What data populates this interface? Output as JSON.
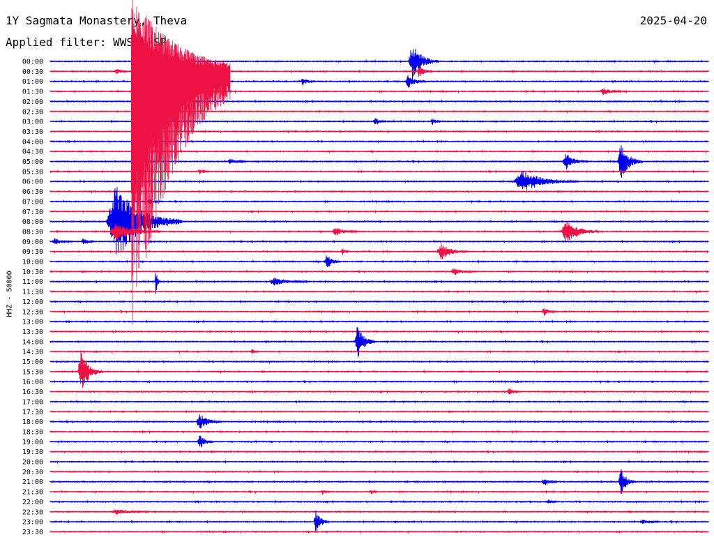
{
  "header": {
    "station": "1Y Sagmata Monastery, Theva",
    "date": "2025-04-20",
    "filter": "Applied filter: WWSSN-SP"
  },
  "colors": {
    "even_trace": "#0000ee",
    "odd_trace": "#ee1144"
  },
  "chart_data": {
    "type": "helicorder",
    "title": "1Y Sagmata Monastery, Theva",
    "date": "2025-04-20",
    "ylabel": "HHZ - 50000",
    "row_minutes": 30,
    "row_labels": [
      "00:00",
      "00:30",
      "01:00",
      "01:30",
      "02:00",
      "02:30",
      "03:00",
      "03:30",
      "04:00",
      "04:30",
      "05:00",
      "05:30",
      "06:00",
      "06:30",
      "07:00",
      "07:30",
      "08:00",
      "08:30",
      "09:00",
      "09:30",
      "10:00",
      "10:30",
      "11:00",
      "11:30",
      "12:00",
      "12:30",
      "13:00",
      "13:30",
      "14:00",
      "14:30",
      "15:00",
      "15:30",
      "16:00",
      "16:30",
      "17:00",
      "17:30",
      "18:00",
      "18:30",
      "19:00",
      "19:30",
      "20:00",
      "20:30",
      "21:00",
      "21:30",
      "22:00",
      "22:30",
      "23:00",
      "23:30"
    ],
    "events": [
      {
        "row": 0,
        "minute": 16.5,
        "amp": 2.6,
        "dur": 1.2
      },
      {
        "row": 1,
        "minute": 3.0,
        "amp": 0.5,
        "dur": 0.5
      },
      {
        "row": 1,
        "minute": 16.8,
        "amp": 0.9,
        "dur": 0.6
      },
      {
        "row": 2,
        "minute": 16.3,
        "amp": 1.0,
        "dur": 0.8
      },
      {
        "row": 2,
        "minute": 11.5,
        "amp": 0.6,
        "dur": 0.6
      },
      {
        "row": 3,
        "minute": 25.2,
        "amp": 0.5,
        "dur": 1.0
      },
      {
        "row": 6,
        "minute": 14.8,
        "amp": 0.5,
        "dur": 0.5
      },
      {
        "row": 6,
        "minute": 17.4,
        "amp": 0.5,
        "dur": 0.4
      },
      {
        "row": 10,
        "minute": 8.2,
        "amp": 0.4,
        "dur": 0.7
      },
      {
        "row": 10,
        "minute": 23.5,
        "amp": 1.2,
        "dur": 1.0
      },
      {
        "row": 10,
        "minute": 26.0,
        "amp": 2.6,
        "dur": 1.0
      },
      {
        "row": 11,
        "minute": 6.8,
        "amp": 0.4,
        "dur": 0.4
      },
      {
        "row": 12,
        "minute": 21.5,
        "amp": 1.6,
        "dur": 2.5
      },
      {
        "row": 14,
        "minute": 4.5,
        "amp": 0.5,
        "dur": 0.5
      },
      {
        "row": 16,
        "minute": 3.0,
        "amp": 5.5,
        "dur": 3.0
      },
      {
        "row": 17,
        "minute": 3.0,
        "amp": 1.3,
        "dur": 2.0
      },
      {
        "row": 17,
        "minute": 13.0,
        "amp": 0.6,
        "dur": 1.0
      },
      {
        "row": 17,
        "minute": 23.5,
        "amp": 1.7,
        "dur": 1.5
      },
      {
        "row": 18,
        "minute": 0.2,
        "amp": 0.5,
        "dur": 0.8
      },
      {
        "row": 18,
        "minute": 1.5,
        "amp": 0.5,
        "dur": 0.5
      },
      {
        "row": 19,
        "minute": 17.8,
        "amp": 1.2,
        "dur": 1.2
      },
      {
        "row": 19,
        "minute": 13.3,
        "amp": 0.6,
        "dur": 0.3
      },
      {
        "row": 20,
        "minute": 12.6,
        "amp": 1.2,
        "dur": 0.6
      },
      {
        "row": 21,
        "minute": 18.4,
        "amp": 0.5,
        "dur": 1.0
      },
      {
        "row": 22,
        "minute": 4.8,
        "amp": 2.3,
        "dur": 0.2
      },
      {
        "row": 22,
        "minute": 10.2,
        "amp": 0.6,
        "dur": 1.5
      },
      {
        "row": 25,
        "minute": 22.5,
        "amp": 0.6,
        "dur": 0.6
      },
      {
        "row": 28,
        "minute": 14.0,
        "amp": 2.4,
        "dur": 0.8
      },
      {
        "row": 29,
        "minute": 9.2,
        "amp": 0.4,
        "dur": 0.3
      },
      {
        "row": 31,
        "minute": 1.4,
        "amp": 3.0,
        "dur": 1.0
      },
      {
        "row": 33,
        "minute": 20.9,
        "amp": 0.6,
        "dur": 0.5
      },
      {
        "row": 36,
        "minute": 6.8,
        "amp": 1.3,
        "dur": 1.0
      },
      {
        "row": 38,
        "minute": 6.8,
        "amp": 1.2,
        "dur": 0.6
      },
      {
        "row": 42,
        "minute": 22.5,
        "amp": 0.6,
        "dur": 0.6
      },
      {
        "row": 42,
        "minute": 26.0,
        "amp": 2.3,
        "dur": 0.6
      },
      {
        "row": 43,
        "minute": 12.4,
        "amp": 0.4,
        "dur": 0.3
      },
      {
        "row": 43,
        "minute": 14.6,
        "amp": 0.4,
        "dur": 0.3
      },
      {
        "row": 44,
        "minute": 22.7,
        "amp": 0.4,
        "dur": 0.4
      },
      {
        "row": 45,
        "minute": 3.0,
        "amp": 0.4,
        "dur": 1.5
      },
      {
        "row": 46,
        "minute": 12.1,
        "amp": 1.7,
        "dur": 0.6
      },
      {
        "row": 46,
        "minute": 27.0,
        "amp": 0.3,
        "dur": 0.8
      }
    ],
    "big_quake": {
      "row": 1,
      "minute": 3.7,
      "amp": 26.0,
      "dur": 4.5
    }
  }
}
